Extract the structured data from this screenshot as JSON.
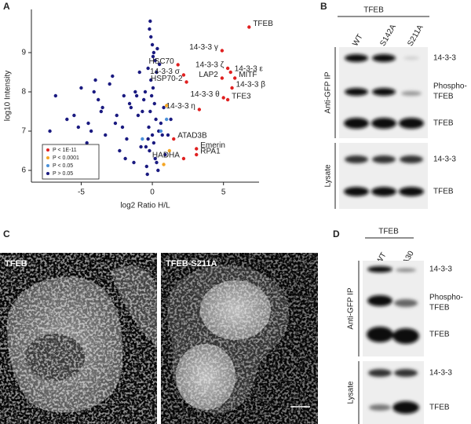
{
  "panel_labels": [
    "A",
    "B",
    "C",
    "D"
  ],
  "chart_data": {
    "type": "scatter",
    "x_label": "log2 Ratio H/L",
    "y_label": "log10 Intensity",
    "xlim": [
      -8.5,
      7.5
    ],
    "ylim": [
      5.7,
      10.1
    ],
    "xticks": [
      -5,
      0,
      5
    ],
    "yticks": [
      6,
      7,
      8,
      9
    ],
    "legend_position": "lower left",
    "series": [
      {
        "name": "P < 1E-11",
        "color": "#e02020",
        "x": [
          6.8,
          4.9,
          1.8,
          5.3,
          2.2,
          5.5,
          4.9,
          5.8,
          2.4,
          5.6,
          5.0,
          5.3,
          3.3,
          1.5,
          3.1,
          3.1,
          2.2
        ],
        "values": [
          9.65,
          9.05,
          8.69,
          8.6,
          8.43,
          8.5,
          8.35,
          8.35,
          8.25,
          8.1,
          7.85,
          7.8,
          7.55,
          6.8,
          6.55,
          6.4,
          6.3
        ],
        "point_labels": [
          "TFEB",
          "14-3-3 γ",
          "HSC70",
          "14-3-3 ζ",
          "14-3-3 σ",
          "14-3-3 ε",
          "LAP2",
          "MITF",
          "HSP70-2",
          "14-3-3 β",
          "14-3-3 θ",
          "TFE3",
          "14-3-3 η",
          "ATAD3B",
          "Emerin",
          "RPA1",
          "HADHA"
        ]
      },
      {
        "name": "P < 0.0001",
        "color": "#f5a623",
        "x": [
          1.0,
          1.2,
          0.8
        ],
        "values": [
          7.65,
          6.5,
          6.15
        ]
      },
      {
        "name": "P < 0.05",
        "color": "#4a90d9",
        "x": [
          0.6,
          -0.7,
          1.0
        ],
        "values": [
          7.0,
          6.8,
          7.3
        ]
      },
      {
        "name": "P > 0.05",
        "color": "#1a1a80",
        "x": [
          -0.2,
          -0.1,
          0,
          0.1,
          0.2,
          -0.3,
          0.3,
          -0.1,
          0.05,
          -0.05,
          0.15,
          -0.15,
          0.25,
          -0.25,
          0,
          0.1,
          -0.2,
          0.2,
          -0.4,
          0.4,
          -0.6,
          0.6,
          -0.8,
          0.7,
          -1,
          0.9,
          -1.2,
          -1.5,
          -1.8,
          -2,
          -2.3,
          -2.6,
          -3,
          -3.3,
          -3.6,
          -4,
          -4.3,
          -4.6,
          -5,
          -5.5,
          -6,
          -6.8,
          -7.2,
          -1.3,
          -2.1,
          -2.8,
          -3.8,
          -4.5,
          -1.6,
          -0.9,
          1.1,
          1.3,
          0.5,
          -0.5,
          -0.7,
          0.3,
          -0.35,
          0.45,
          -1.1,
          -2.5,
          -3.5,
          -5.2,
          -4.1,
          -1.9,
          0.8,
          -0.45,
          0.35,
          -0.15,
          0.05,
          -0.3
        ],
        "values": [
          9.6,
          9.4,
          9.2,
          9.0,
          8.8,
          8.6,
          8.5,
          8.3,
          8.1,
          7.9,
          7.7,
          7.5,
          7.3,
          7.1,
          6.9,
          6.7,
          6.5,
          6.3,
          6.1,
          6.0,
          7.8,
          7.2,
          6.6,
          6.9,
          7.4,
          6.4,
          8.0,
          7.6,
          6.8,
          7.9,
          6.5,
          7.2,
          8.2,
          6.9,
          7.5,
          8.3,
          7.0,
          6.7,
          8.1,
          7.4,
          7.3,
          7.9,
          7.0,
          6.2,
          7.1,
          8.4,
          7.8,
          7.2,
          7.7,
          8.5,
          6.9,
          7.3,
          8.7,
          8.0,
          7.5,
          6.2,
          5.9,
          7.0,
          7.9,
          7.4,
          7.6,
          7.1,
          8.0,
          6.3,
          7.6,
          6.6,
          9.1,
          9.8,
          8.9,
          6.8
        ]
      }
    ]
  },
  "blot_b": {
    "header": "TFEB",
    "lanes": [
      "WT",
      "S142A",
      "S211A"
    ],
    "groups": [
      "Anti-GFP IP",
      "Lysate"
    ],
    "rows": [
      [
        "14-3-3"
      ],
      [
        "Phospho-",
        "TFEB"
      ],
      [
        "TFEB"
      ],
      [
        "14-3-3"
      ],
      [
        "TFEB"
      ]
    ]
  },
  "images": [
    "TFEB",
    "TFEB-S211A"
  ],
  "blot_d": {
    "header": "TFEB",
    "lanes": [
      "WT",
      "Δ30"
    ],
    "groups": [
      "Anti-GFP IP",
      "Lysate"
    ],
    "rows": [
      [
        "14-3-3"
      ],
      [
        "Phospho-",
        "TFEB"
      ],
      [
        "TFEB"
      ],
      [
        "14-3-3"
      ],
      [
        "TFEB"
      ]
    ]
  }
}
